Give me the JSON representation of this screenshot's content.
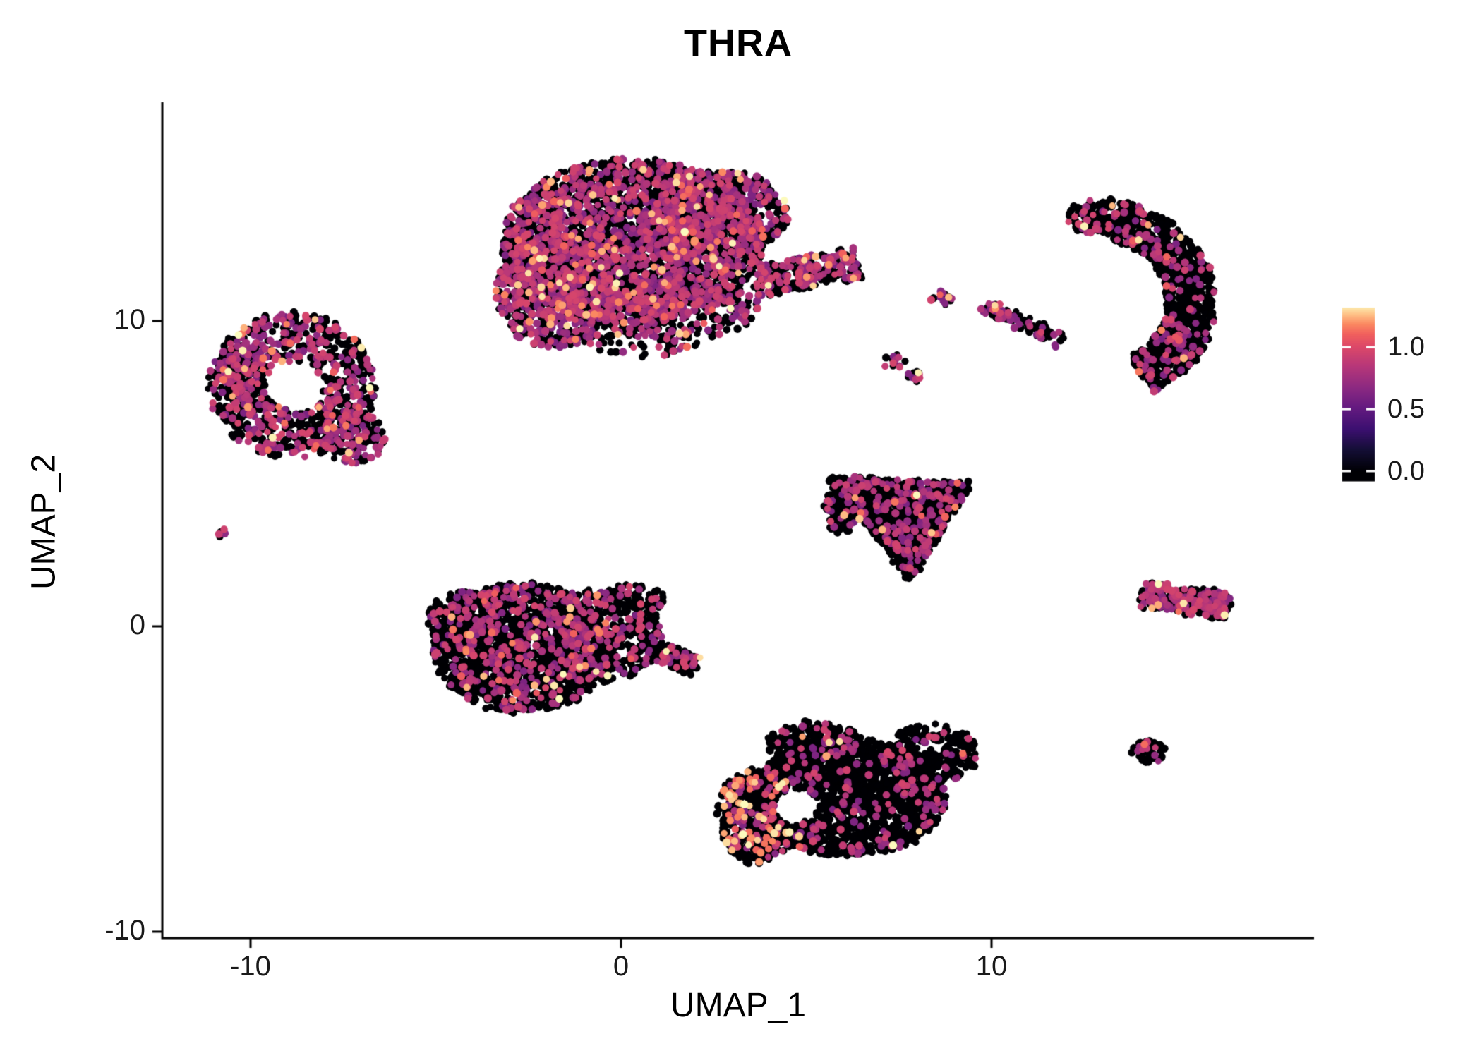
{
  "chart_data": {
    "type": "scatter",
    "title": "THRA",
    "subtitle": "",
    "xlabel": "UMAP_1",
    "ylabel": "UMAP_2",
    "xlim": [
      -12.4,
      18.7
    ],
    "ylim": [
      -10.3,
      17.2
    ],
    "grid": false,
    "legend_position": "right",
    "panel_background": "#ffffff",
    "axis_color": "#000000",
    "x_ticks": [
      {
        "value": -10,
        "label": "-10"
      },
      {
        "value": 0,
        "label": "0"
      },
      {
        "value": 10,
        "label": "10"
      }
    ],
    "y_ticks": [
      {
        "value": 10,
        "label": "10"
      },
      {
        "value": 0,
        "label": "0"
      },
      {
        "value": -10,
        "label": "-10"
      }
    ],
    "colorbar": {
      "vmin": 0.0,
      "vmax": 1.35,
      "ticks": [
        {
          "value": 1.0,
          "label": "1.0"
        },
        {
          "value": 0.5,
          "label": "0.5"
        },
        {
          "value": 0.0,
          "label": "0.0"
        }
      ],
      "palette": "magma",
      "stops": [
        {
          "p": 0.0,
          "color": "#000004"
        },
        {
          "p": 0.13,
          "color": "#140e36"
        },
        {
          "p": 0.25,
          "color": "#3b0f70"
        },
        {
          "p": 0.38,
          "color": "#641a80"
        },
        {
          "p": 0.5,
          "color": "#8c2981"
        },
        {
          "p": 0.63,
          "color": "#b73779"
        },
        {
          "p": 0.75,
          "color": "#de4968"
        },
        {
          "p": 0.82,
          "color": "#f1605d"
        },
        {
          "p": 0.88,
          "color": "#fb8861"
        },
        {
          "p": 0.94,
          "color": "#fec287"
        },
        {
          "p": 1.0,
          "color": "#fcfdbf"
        }
      ]
    },
    "clusters": [
      {
        "name": "top-center-large",
        "mix": {
          "zero": 0.6,
          "mid": 0.37,
          "high": 0.03
        },
        "holes": [],
        "shapes": [
          {
            "kind": "ellipse",
            "cx": 0.3,
            "cy": 12.6,
            "rx": 3.5,
            "ry": 2.7,
            "n": 2800
          },
          {
            "kind": "ellipse",
            "cx": -1.7,
            "cy": 11.0,
            "rx": 1.7,
            "ry": 1.9,
            "n": 700
          },
          {
            "kind": "ellipse",
            "cx": 2.6,
            "cy": 13.5,
            "rx": 1.9,
            "ry": 1.5,
            "n": 550
          },
          {
            "kind": "ellipse",
            "cx": 1.5,
            "cy": 10.4,
            "rx": 2.2,
            "ry": 1.0,
            "n": 350
          },
          {
            "kind": "line",
            "x1": 3.6,
            "y1": 11.3,
            "x2": 6.4,
            "y2": 11.9,
            "t": 0.5,
            "n": 300
          },
          {
            "kind": "ellipse",
            "cx": 0.6,
            "cy": 9.3,
            "rx": 1.5,
            "ry": 0.5,
            "n": 60
          }
        ]
      },
      {
        "name": "top-right-crescent",
        "mix": {
          "zero": 0.87,
          "mid": 0.12,
          "high": 0.01
        },
        "holes": [
          {
            "cx": 13.9,
            "cy": 9.4,
            "r": 0.28
          },
          {
            "cx": 13.3,
            "cy": 11.9,
            "r": 0.25
          }
        ],
        "shapes": [
          {
            "kind": "arc",
            "cx": 12.6,
            "cy": 10.6,
            "r": 2.8,
            "a1": 72,
            "a2": -58,
            "t": 0.65,
            "n": 1050
          },
          {
            "kind": "ellipse",
            "cx": 13.0,
            "cy": 13.4,
            "rx": 0.9,
            "ry": 0.6,
            "n": 170
          }
        ]
      },
      {
        "name": "islet-small",
        "mix": {
          "zero": 0.45,
          "mid": 0.5,
          "high": 0.05
        },
        "holes": [],
        "shapes": [
          {
            "kind": "ellipse",
            "cx": 8.6,
            "cy": 10.8,
            "rx": 0.3,
            "ry": 0.25,
            "n": 16
          }
        ]
      },
      {
        "name": "thin-streak",
        "mix": {
          "zero": 0.75,
          "mid": 0.24,
          "high": 0.01
        },
        "holes": [],
        "shapes": [
          {
            "kind": "line",
            "x1": 9.95,
            "y1": 10.45,
            "x2": 11.9,
            "y2": 9.35,
            "t": 0.22,
            "n": 80
          },
          {
            "kind": "ellipse",
            "cx": 10.0,
            "cy": 10.4,
            "rx": 0.28,
            "ry": 0.22,
            "n": 18,
            "mix": {
              "zero": 0.3,
              "mid": 0.65,
              "high": 0.05
            }
          }
        ]
      },
      {
        "name": "tiny-pair",
        "mix": {
          "zero": 0.6,
          "mid": 0.35,
          "high": 0.05
        },
        "holes": [],
        "shapes": [
          {
            "kind": "ellipse",
            "cx": 7.35,
            "cy": 8.65,
            "rx": 0.28,
            "ry": 0.22,
            "n": 14
          },
          {
            "kind": "ellipse",
            "cx": 7.95,
            "cy": 8.2,
            "rx": 0.24,
            "ry": 0.2,
            "n": 12
          }
        ]
      },
      {
        "name": "left-ring",
        "mix": {
          "zero": 0.58,
          "mid": 0.39,
          "high": 0.03
        },
        "holes": [
          {
            "cx": -8.8,
            "cy": 7.9,
            "r": 0.8
          }
        ],
        "shapes": [
          {
            "kind": "ellipse",
            "cx": -8.9,
            "cy": 7.9,
            "rx": 2.25,
            "ry": 2.35,
            "n": 880
          },
          {
            "kind": "ellipse",
            "cx": -7.3,
            "cy": 6.2,
            "rx": 0.95,
            "ry": 0.85,
            "n": 160
          },
          {
            "kind": "ellipse",
            "cx": -10.2,
            "cy": 8.5,
            "rx": 0.6,
            "ry": 0.8,
            "n": 90
          }
        ]
      },
      {
        "name": "tiny-left-dot",
        "mix": {
          "zero": 0.3,
          "mid": 0.7,
          "high": 0.0
        },
        "holes": [],
        "shapes": [
          {
            "kind": "ellipse",
            "cx": -10.75,
            "cy": 3.05,
            "rx": 0.17,
            "ry": 0.15,
            "n": 5
          }
        ]
      },
      {
        "name": "mid-right-triangle",
        "mix": {
          "zero": 0.84,
          "mid": 0.15,
          "high": 0.01
        },
        "holes": [],
        "shapes": [
          {
            "kind": "tri",
            "pts": [
              [
                5.55,
                4.9
              ],
              [
                9.45,
                4.7
              ],
              [
                7.8,
                1.5
              ]
            ],
            "n": 1250
          },
          {
            "kind": "ellipse",
            "cx": 5.95,
            "cy": 3.9,
            "rx": 0.45,
            "ry": 0.9,
            "n": 120
          }
        ]
      },
      {
        "name": "center-left-blob",
        "mix": {
          "zero": 0.8,
          "mid": 0.18,
          "high": 0.02
        },
        "holes": [],
        "shapes": [
          {
            "kind": "ellipse",
            "cx": -2.7,
            "cy": -0.7,
            "rx": 2.4,
            "ry": 2.1,
            "n": 1600
          },
          {
            "kind": "ellipse",
            "cx": -0.6,
            "cy": -0.3,
            "rx": 1.7,
            "ry": 1.5,
            "n": 550
          },
          {
            "kind": "ellipse",
            "cx": -4.2,
            "cy": 0.2,
            "rx": 1.0,
            "ry": 1.0,
            "n": 200
          },
          {
            "kind": "line",
            "x1": 0.9,
            "y1": -0.8,
            "x2": 2.0,
            "y2": -1.3,
            "t": 0.3,
            "n": 140
          },
          {
            "kind": "ellipse",
            "cx": 0.3,
            "cy": 0.9,
            "rx": 0.9,
            "ry": 0.5,
            "n": 70
          }
        ]
      },
      {
        "name": "bottom-center-blob",
        "mix": {
          "zero": 0.9,
          "mid": 0.095,
          "high": 0.005
        },
        "holes": [
          {
            "cx": 4.7,
            "cy": -5.9,
            "r": 0.6
          }
        ],
        "shapes": [
          {
            "kind": "ellipse",
            "cx": 6.1,
            "cy": -5.6,
            "rx": 2.7,
            "ry": 1.9,
            "n": 1700
          },
          {
            "kind": "ellipse",
            "cx": 3.7,
            "cy": -6.2,
            "rx": 1.1,
            "ry": 1.6,
            "n": 420,
            "mix": {
              "zero": 0.72,
              "mid": 0.13,
              "high": 0.15
            }
          },
          {
            "kind": "ellipse",
            "cx": 8.4,
            "cy": -4.2,
            "rx": 1.2,
            "ry": 1.0,
            "n": 280
          },
          {
            "kind": "ellipse",
            "cx": 5.2,
            "cy": -3.9,
            "rx": 1.3,
            "ry": 0.8,
            "n": 250
          }
        ]
      },
      {
        "name": "right-arrowhead",
        "mix": {
          "zero": 0.55,
          "mid": 0.42,
          "high": 0.03
        },
        "holes": [],
        "shapes": [
          {
            "kind": "line",
            "x1": 14.0,
            "y1": 1.05,
            "x2": 16.35,
            "y2": 0.65,
            "t": 0.4,
            "n": 260
          },
          {
            "kind": "ellipse",
            "cx": 16.0,
            "cy": 0.8,
            "rx": 0.45,
            "ry": 0.4,
            "n": 80
          }
        ]
      },
      {
        "name": "bottom-right-dot",
        "mix": {
          "zero": 0.84,
          "mid": 0.13,
          "high": 0.03
        },
        "holes": [],
        "shapes": [
          {
            "kind": "ellipse",
            "cx": 14.25,
            "cy": -4.1,
            "rx": 0.42,
            "ry": 0.38,
            "n": 55
          }
        ]
      }
    ]
  }
}
